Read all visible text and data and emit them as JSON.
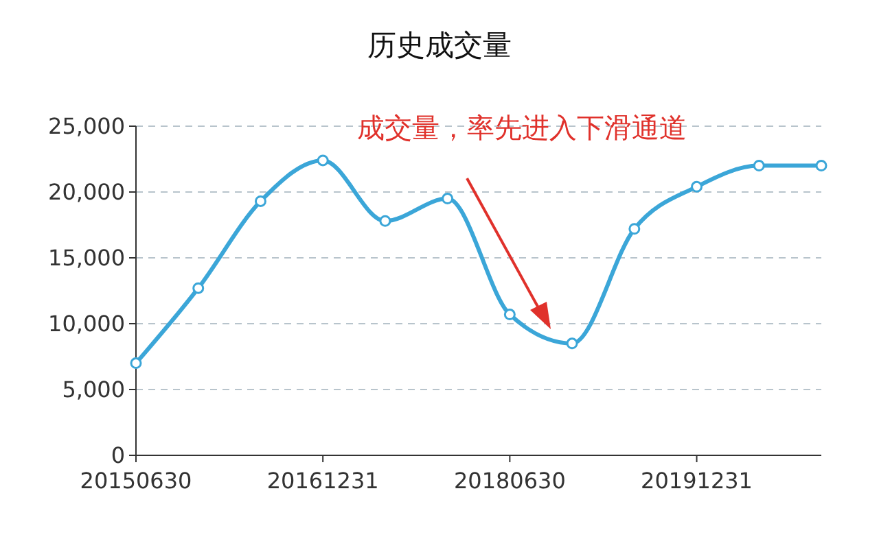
{
  "chart_data": {
    "type": "line",
    "title": "历史成交量",
    "categories": [
      "20150630",
      null,
      null,
      "20161231",
      null,
      null,
      "20180630",
      null,
      null,
      "20191231",
      null,
      null
    ],
    "series": [
      {
        "color": "#3ba6d8",
        "values": [
          7000,
          12700,
          19300,
          22400,
          17800,
          19500,
          10700,
          8500,
          17200,
          20400,
          22000,
          22000
        ]
      }
    ],
    "ylim": [
      0,
      25000
    ],
    "yticks": [
      {
        "value": 0,
        "label": "0"
      },
      {
        "value": 5000,
        "label": "5,000"
      },
      {
        "value": 10000,
        "label": "10,000"
      },
      {
        "value": 15000,
        "label": "15,000"
      },
      {
        "value": 20000,
        "label": "20,000"
      },
      {
        "value": 25000,
        "label": "25,000"
      }
    ],
    "grid": "y",
    "marker": "circle",
    "line_style": "solid",
    "annotations": [
      "成交量，率先进入下滑通道"
    ]
  }
}
